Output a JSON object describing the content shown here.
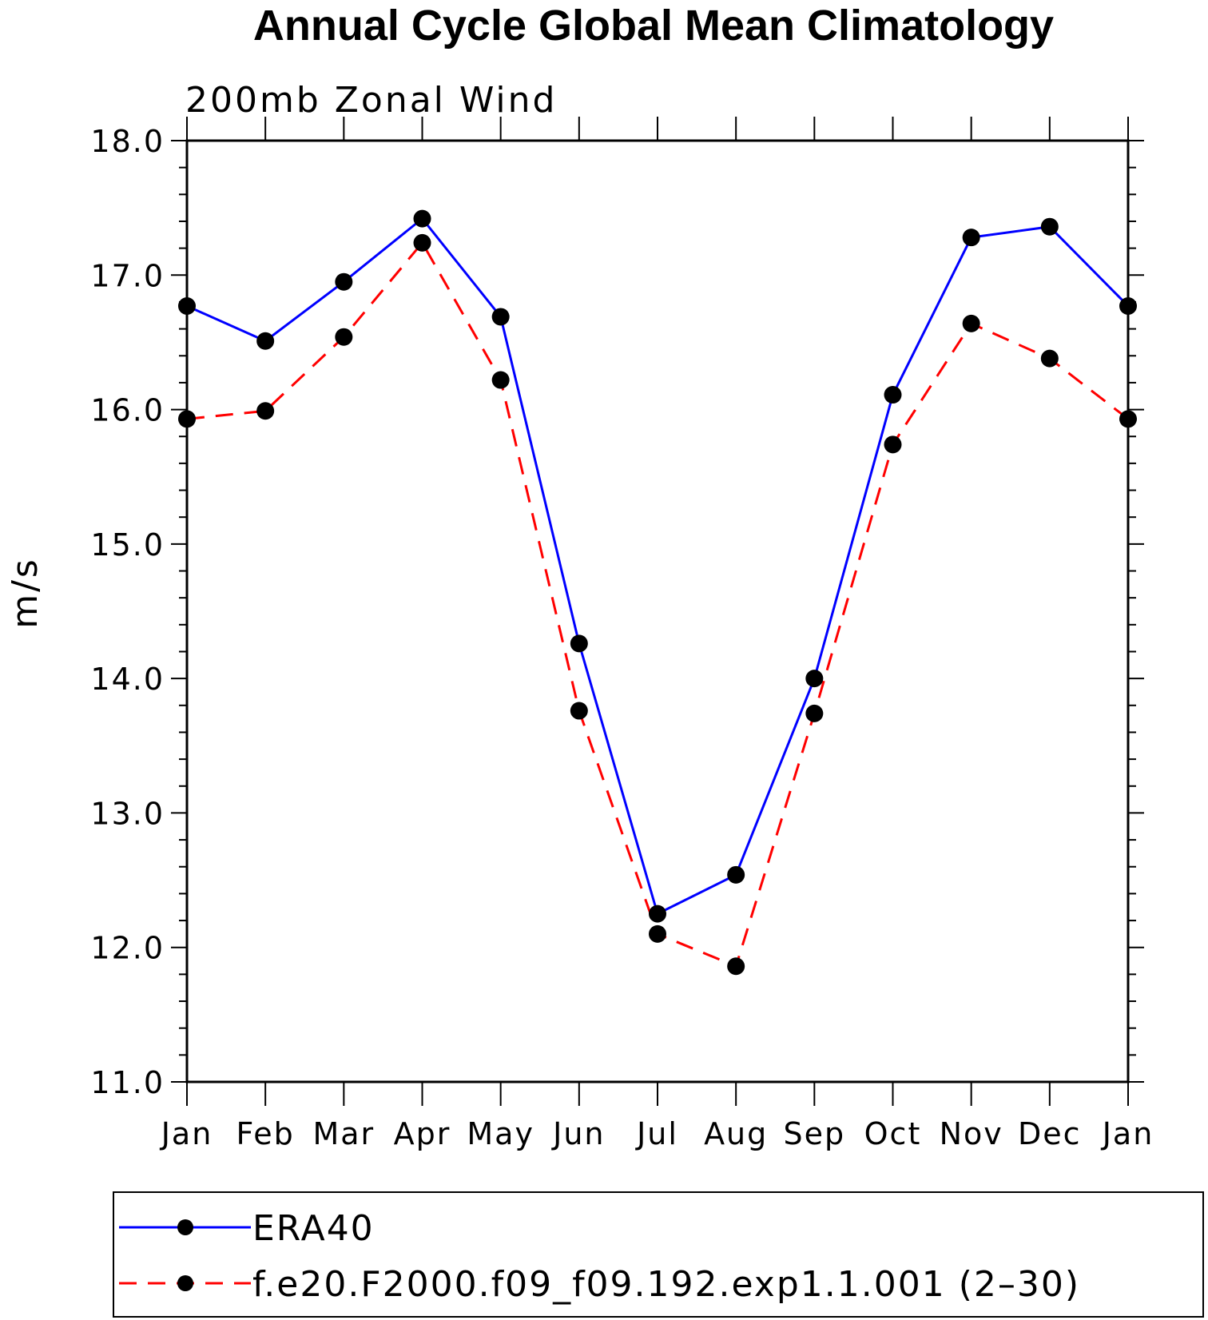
{
  "chart_data": {
    "type": "line",
    "title": "Annual Cycle Global Mean Climatology",
    "subtitle": "200mb Zonal Wind",
    "xlabel": "",
    "ylabel": "m/s",
    "categories": [
      "Jan",
      "Feb",
      "Mar",
      "Apr",
      "May",
      "Jun",
      "Jul",
      "Aug",
      "Sep",
      "Oct",
      "Nov",
      "Dec",
      "Jan"
    ],
    "ylim": [
      11.0,
      18.0
    ],
    "yticks": [
      "11.0",
      "12.0",
      "13.0",
      "14.0",
      "15.0",
      "16.0",
      "17.0",
      "18.0"
    ],
    "grid": false,
    "legend_position": "bottom",
    "series": [
      {
        "name": "ERA40",
        "color": "#0000ff",
        "dash": "solid",
        "marker": "filled-circle",
        "values": [
          16.77,
          16.51,
          16.95,
          17.42,
          16.69,
          14.26,
          12.25,
          12.54,
          14.0,
          16.11,
          17.28,
          17.36,
          16.77
        ]
      },
      {
        "name": "f.e20.F2000.f09_f09.192.exp1.1.001 (2–30)",
        "color": "#ff0000",
        "dash": "dashed",
        "marker": "filled-circle",
        "values": [
          15.93,
          15.99,
          16.54,
          17.24,
          16.22,
          13.76,
          12.1,
          11.86,
          13.74,
          15.74,
          16.64,
          16.38,
          15.93
        ]
      }
    ]
  }
}
